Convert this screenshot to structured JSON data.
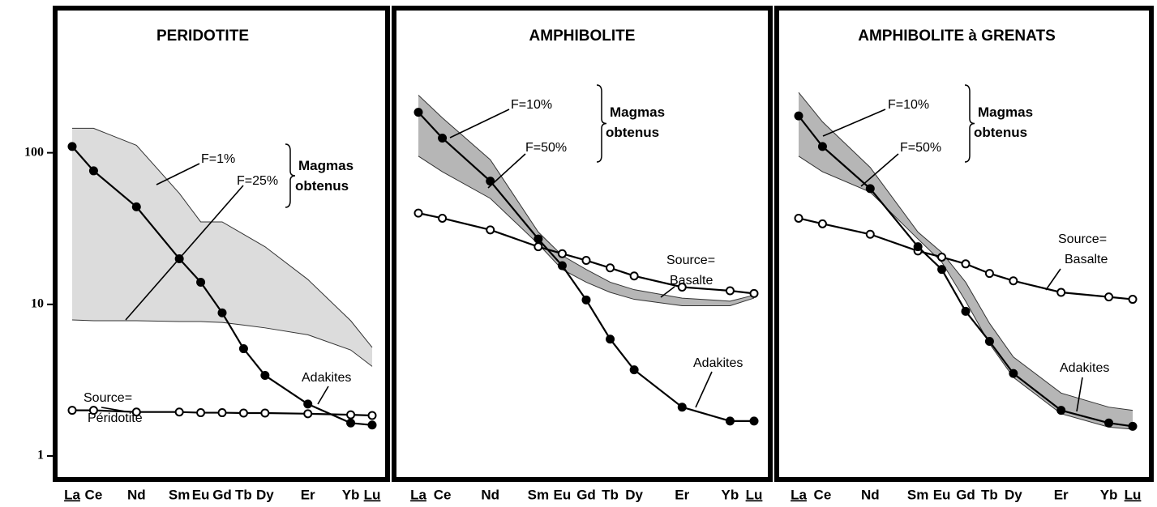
{
  "chart_data": [
    {
      "type": "line",
      "title": "PERIDOTITE",
      "yscale": "log",
      "ylim": [
        0.7,
        900
      ],
      "yticks": [
        1,
        10,
        100
      ],
      "categories": [
        "La",
        "Ce",
        "Nd",
        "Sm",
        "Eu",
        "Gd",
        "Tb",
        "Dy",
        "Er",
        "Yb",
        "Lu"
      ],
      "band": {
        "name": "Magmas obtenus",
        "color": "#d6d6d6",
        "upper": {
          "name": "F=1%",
          "values": [
            145,
            145,
            112,
            54,
            35,
            35,
            29,
            24,
            14.6,
            7.8,
            5.2
          ]
        },
        "lower": {
          "name": "F=25%",
          "values": [
            7.9,
            7.8,
            7.8,
            7.7,
            7.7,
            7.6,
            7.3,
            7.0,
            6.3,
            5.0,
            3.9
          ]
        }
      },
      "series": [
        {
          "name": "Source= Péridotite",
          "marker": "open",
          "color": "#000000",
          "values": [
            2.0,
            2.0,
            1.95,
            1.95,
            1.93,
            1.93,
            1.92,
            1.92,
            1.9,
            1.87,
            1.85
          ]
        },
        {
          "name": "Adakites",
          "marker": "filled",
          "color": "#000000",
          "values": [
            110,
            76,
            44,
            20,
            14,
            8.8,
            5.1,
            3.4,
            2.2,
            1.65,
            1.6
          ]
        }
      ]
    },
    {
      "type": "line",
      "title": "AMPHIBOLITE",
      "yscale": "log",
      "ylim": [
        0.7,
        900
      ],
      "categories": [
        "La",
        "Ce",
        "Nd",
        "Sm",
        "Eu",
        "Gd",
        "Tb",
        "Dy",
        "Er",
        "Yb",
        "Lu"
      ],
      "band": {
        "name": "Magmas obtenus",
        "color": "#a9a9a9",
        "upper": {
          "name": "F=10%",
          "values": [
            240,
            170,
            90,
            30,
            21,
            17,
            14,
            12.5,
            11,
            10.5,
            11.5
          ]
        },
        "lower": {
          "name": "F=50%",
          "values": [
            95,
            75,
            50,
            25,
            17,
            14,
            12,
            10.8,
            9.8,
            9.8,
            11
          ]
        }
      },
      "series": [
        {
          "name": "Source= Basalte",
          "marker": "open",
          "color": "#000000",
          "values": [
            40,
            37,
            31,
            24,
            21.6,
            19.5,
            17.4,
            15.4,
            13,
            12.3,
            11.8
          ]
        },
        {
          "name": "Adakites",
          "marker": "filled",
          "color": "#000000",
          "values": [
            185,
            125,
            65,
            27,
            18,
            10.7,
            5.9,
            3.7,
            2.1,
            1.7,
            1.7
          ]
        }
      ]
    },
    {
      "type": "line",
      "title": "AMPHIBOLITE à GRENATS",
      "yscale": "log",
      "ylim": [
        0.7,
        900
      ],
      "categories": [
        "La",
        "Ce",
        "Nd",
        "Sm",
        "Eu",
        "Gd",
        "Tb",
        "Dy",
        "Er",
        "Yb",
        "Lu"
      ],
      "band": {
        "name": "Magmas obtenus",
        "color": "#a9a9a9",
        "upper": {
          "name": "F=10%",
          "values": [
            250,
            160,
            80,
            30,
            22,
            14,
            7.5,
            4.5,
            2.6,
            2.1,
            2.0
          ]
        },
        "lower": {
          "name": "F=50%",
          "values": [
            95,
            75,
            55,
            27,
            19,
            10.5,
            5.5,
            3.3,
            1.9,
            1.55,
            1.5
          ]
        }
      },
      "series": [
        {
          "name": "Source= Basalte",
          "marker": "open",
          "color": "#000000",
          "values": [
            37,
            34,
            29,
            22.5,
            20.5,
            18.5,
            16,
            14.3,
            12,
            11.2,
            10.8
          ]
        },
        {
          "name": "Adakites",
          "marker": "filled",
          "color": "#000000",
          "values": [
            175,
            110,
            58,
            24,
            17,
            9,
            5.7,
            3.5,
            2.0,
            1.65,
            1.57
          ]
        }
      ]
    }
  ]
}
